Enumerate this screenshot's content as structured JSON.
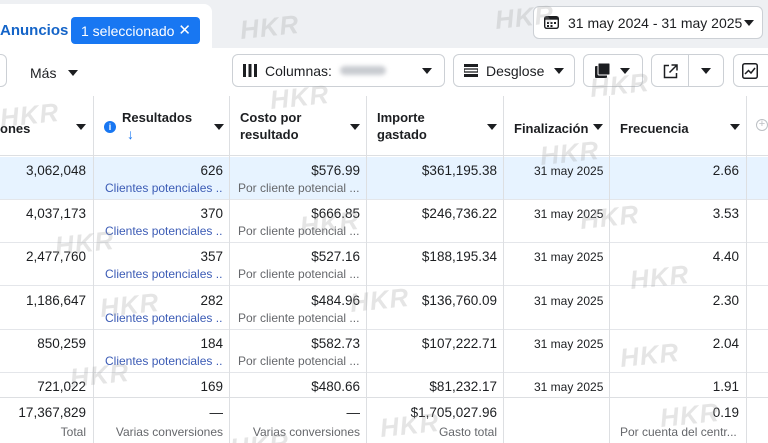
{
  "top": {
    "tab_label": "Anuncios",
    "selection_chip": "1 seleccionado",
    "close_glyph": "✕",
    "date_range": "31 may 2024 - 31 may 2025"
  },
  "toolbar": {
    "more_label": "Más",
    "columns_label": "Columnas:",
    "breakdown_label": "Desglose"
  },
  "headers": {
    "impressions": "ones",
    "results": "Resultados",
    "results_sort": "↓",
    "cost_line1": "Costo por",
    "cost_line2": "resultado",
    "spent_line1": "Importe",
    "spent_line2": "gastado",
    "end": "Finalización",
    "frequency": "Frecuencia",
    "info_glyph": "i"
  },
  "rows": [
    {
      "impressions": "3,062,048",
      "results": "626",
      "results_sub": "Clientes potenciales ...",
      "cost": "$576.99",
      "cost_sub": "Por cliente potencial ...",
      "spent": "$361,195.38",
      "end": "31 may 2025",
      "frequency": "2.66"
    },
    {
      "impressions": "4,037,173",
      "results": "370",
      "results_sub": "Clientes potenciales ...",
      "cost": "$666.85",
      "cost_sub": "Por cliente potencial ...",
      "spent": "$246,736.22",
      "end": "31 may 2025",
      "frequency": "3.53"
    },
    {
      "impressions": "2,477,760",
      "results": "357",
      "results_sub": "Clientes potenciales ...",
      "cost": "$527.16",
      "cost_sub": "Por cliente potencial ...",
      "spent": "$188,195.34",
      "end": "31 may 2025",
      "frequency": "4.40"
    },
    {
      "impressions": "1,186,647",
      "results": "282",
      "results_sub": "Clientes potenciales ...",
      "cost": "$484.96",
      "cost_sub": "Por cliente potencial ...",
      "spent": "$136,760.09",
      "end": "31 may 2025",
      "frequency": "2.30"
    },
    {
      "impressions": "850,259",
      "results": "184",
      "results_sub": "Clientes potenciales ...",
      "cost": "$582.73",
      "cost_sub": "Por cliente potencial ...",
      "spent": "$107,222.71",
      "end": "31 may 2025",
      "frequency": "2.04"
    },
    {
      "impressions": "721,022",
      "results": "169",
      "results_sub": "",
      "cost": "$480.66",
      "cost_sub": "",
      "spent": "$81,232.17",
      "end": "31 may 2025",
      "frequency": "1.91"
    }
  ],
  "totals": {
    "impressions": "17,367,829",
    "impressions_sub": "Total",
    "results": "—",
    "results_sub": "Varias conversiones",
    "cost": "—",
    "cost_sub": "Varias conversiones",
    "spent": "$1,705,027.96",
    "spent_sub": "Gasto total",
    "frequency": "0.19",
    "frequency_sub": "Por cuenta del centr..."
  },
  "watermark": "HKR",
  "colors": {
    "accent": "#1877f2",
    "link": "#3b5bb5",
    "selected_row": "#e7f3ff"
  }
}
